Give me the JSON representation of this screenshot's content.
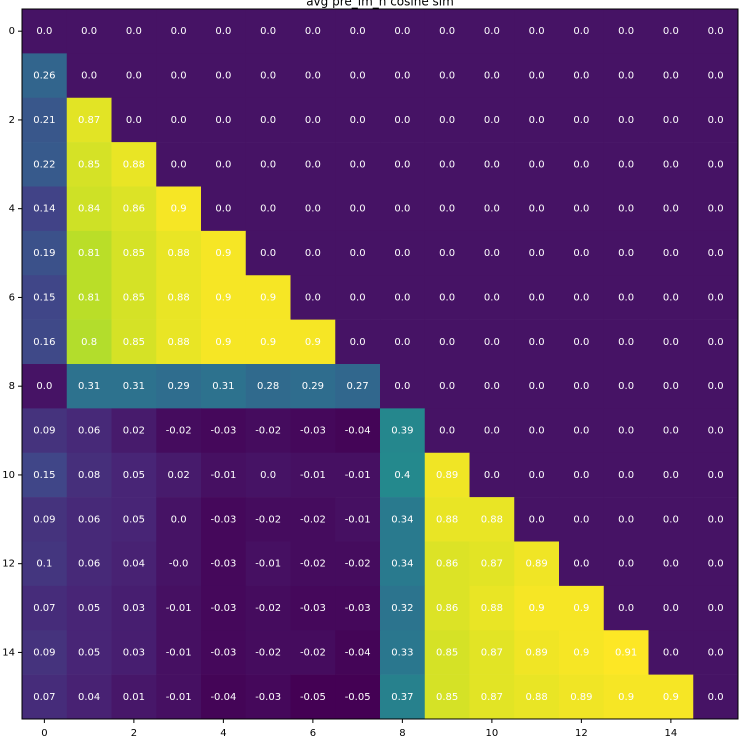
{
  "chart_data": {
    "type": "heatmap",
    "title": "avg pre_lm_h cosine sim",
    "colormap": "viridis",
    "clim": [
      -0.05,
      0.91
    ],
    "xlim": [
      -0.5,
      15.5
    ],
    "ylim": [
      15.5,
      -0.5
    ],
    "xticks": [
      0,
      2,
      4,
      6,
      8,
      10,
      12,
      14
    ],
    "yticks": [
      0,
      2,
      4,
      6,
      8,
      10,
      12,
      14
    ],
    "values": [
      [
        0,
        0,
        0,
        0,
        0,
        0,
        0,
        0,
        0,
        0,
        0,
        0,
        0,
        0,
        0,
        0
      ],
      [
        0.26,
        0,
        0,
        0,
        0,
        0,
        0,
        0,
        0,
        0,
        0,
        0,
        0,
        0,
        0,
        0
      ],
      [
        0.21,
        0.87,
        0,
        0,
        0,
        0,
        0,
        0,
        0,
        0,
        0,
        0,
        0,
        0,
        0,
        0
      ],
      [
        0.22,
        0.85,
        0.88,
        0,
        0,
        0,
        0,
        0,
        0,
        0,
        0,
        0,
        0,
        0,
        0,
        0
      ],
      [
        0.14,
        0.84,
        0.86,
        0.9,
        0,
        0,
        0,
        0,
        0,
        0,
        0,
        0,
        0,
        0,
        0,
        0
      ],
      [
        0.19,
        0.81,
        0.85,
        0.88,
        0.9,
        0,
        0,
        0,
        0,
        0,
        0,
        0,
        0,
        0,
        0,
        0
      ],
      [
        0.15,
        0.81,
        0.85,
        0.88,
        0.9,
        0.9,
        0,
        0,
        0,
        0,
        0,
        0,
        0,
        0,
        0,
        0
      ],
      [
        0.16,
        0.8,
        0.85,
        0.88,
        0.9,
        0.9,
        0.9,
        0,
        0,
        0,
        0,
        0,
        0,
        0,
        0,
        0
      ],
      [
        0,
        0.31,
        0.31,
        0.29,
        0.31,
        0.28,
        0.29,
        0.27,
        0,
        0,
        0,
        0,
        0,
        0,
        0,
        0
      ],
      [
        0.09,
        0.06,
        0.02,
        -0.02,
        -0.03,
        -0.02,
        -0.03,
        -0.04,
        0.39,
        0,
        0,
        0,
        0,
        0,
        0,
        0
      ],
      [
        0.15,
        0.08,
        0.05,
        0.02,
        -0.01,
        0,
        -0.01,
        -0.01,
        0.4,
        0.89,
        0,
        0,
        0,
        0,
        0,
        0
      ],
      [
        0.09,
        0.06,
        0.05,
        0,
        -0.03,
        -0.02,
        -0.02,
        -0.01,
        0.34,
        0.88,
        0.88,
        0,
        0,
        0,
        0,
        0
      ],
      [
        0.1,
        0.06,
        0.04,
        0,
        -0.03,
        -0.01,
        -0.02,
        -0.02,
        0.34,
        0.86,
        0.87,
        0.89,
        0,
        0,
        0,
        0
      ],
      [
        0.07,
        0.05,
        0.03,
        -0.01,
        -0.03,
        -0.02,
        -0.03,
        -0.03,
        0.32,
        0.86,
        0.88,
        0.9,
        0.9,
        0,
        0,
        0
      ],
      [
        0.09,
        0.05,
        0.03,
        -0.01,
        -0.03,
        -0.02,
        -0.02,
        -0.04,
        0.33,
        0.85,
        0.87,
        0.89,
        0.9,
        0.91,
        0,
        0
      ],
      [
        0.07,
        0.04,
        0.01,
        -0.01,
        -0.04,
        -0.03,
        -0.05,
        -0.05,
        0.37,
        0.85,
        0.87,
        0.88,
        0.89,
        0.9,
        0.9,
        0
      ]
    ],
    "value_labels": [
      [
        "0.0",
        "0.0",
        "0.0",
        "0.0",
        "0.0",
        "0.0",
        "0.0",
        "0.0",
        "0.0",
        "0.0",
        "0.0",
        "0.0",
        "0.0",
        "0.0",
        "0.0",
        "0.0"
      ],
      [
        "0.26",
        "0.0",
        "0.0",
        "0.0",
        "0.0",
        "0.0",
        "0.0",
        "0.0",
        "0.0",
        "0.0",
        "0.0",
        "0.0",
        "0.0",
        "0.0",
        "0.0",
        "0.0"
      ],
      [
        "0.21",
        "0.87",
        "0.0",
        "0.0",
        "0.0",
        "0.0",
        "0.0",
        "0.0",
        "0.0",
        "0.0",
        "0.0",
        "0.0",
        "0.0",
        "0.0",
        "0.0",
        "0.0"
      ],
      [
        "0.22",
        "0.85",
        "0.88",
        "0.0",
        "0.0",
        "0.0",
        "0.0",
        "0.0",
        "0.0",
        "0.0",
        "0.0",
        "0.0",
        "0.0",
        "0.0",
        "0.0",
        "0.0"
      ],
      [
        "0.14",
        "0.84",
        "0.86",
        "0.9",
        "0.0",
        "0.0",
        "0.0",
        "0.0",
        "0.0",
        "0.0",
        "0.0",
        "0.0",
        "0.0",
        "0.0",
        "0.0",
        "0.0"
      ],
      [
        "0.19",
        "0.81",
        "0.85",
        "0.88",
        "0.9",
        "0.0",
        "0.0",
        "0.0",
        "0.0",
        "0.0",
        "0.0",
        "0.0",
        "0.0",
        "0.0",
        "0.0",
        "0.0"
      ],
      [
        "0.15",
        "0.81",
        "0.85",
        "0.88",
        "0.9",
        "0.9",
        "0.0",
        "0.0",
        "0.0",
        "0.0",
        "0.0",
        "0.0",
        "0.0",
        "0.0",
        "0.0",
        "0.0"
      ],
      [
        "0.16",
        "0.8",
        "0.85",
        "0.88",
        "0.9",
        "0.9",
        "0.9",
        "0.0",
        "0.0",
        "0.0",
        "0.0",
        "0.0",
        "0.0",
        "0.0",
        "0.0",
        "0.0"
      ],
      [
        "0.0",
        "0.31",
        "0.31",
        "0.29",
        "0.31",
        "0.28",
        "0.29",
        "0.27",
        "0.0",
        "0.0",
        "0.0",
        "0.0",
        "0.0",
        "0.0",
        "0.0",
        "0.0"
      ],
      [
        "0.09",
        "0.06",
        "0.02",
        "-0.02",
        "-0.03",
        "-0.02",
        "-0.03",
        "-0.04",
        "0.39",
        "0.0",
        "0.0",
        "0.0",
        "0.0",
        "0.0",
        "0.0",
        "0.0"
      ],
      [
        "0.15",
        "0.08",
        "0.05",
        "0.02",
        "-0.01",
        "0.0",
        "-0.01",
        "-0.01",
        "0.4",
        "0.89",
        "0.0",
        "0.0",
        "0.0",
        "0.0",
        "0.0",
        "0.0"
      ],
      [
        "0.09",
        "0.06",
        "0.05",
        "0.0",
        "-0.03",
        "-0.02",
        "-0.02",
        "-0.01",
        "0.34",
        "0.88",
        "0.88",
        "0.0",
        "0.0",
        "0.0",
        "0.0",
        "0.0"
      ],
      [
        "0.1",
        "0.06",
        "0.04",
        "-0.0",
        "-0.03",
        "-0.01",
        "-0.02",
        "-0.02",
        "0.34",
        "0.86",
        "0.87",
        "0.89",
        "0.0",
        "0.0",
        "0.0",
        "0.0"
      ],
      [
        "0.07",
        "0.05",
        "0.03",
        "-0.01",
        "-0.03",
        "-0.02",
        "-0.03",
        "-0.03",
        "0.32",
        "0.86",
        "0.88",
        "0.9",
        "0.9",
        "0.0",
        "0.0",
        "0.0"
      ],
      [
        "0.09",
        "0.05",
        "0.03",
        "-0.01",
        "-0.03",
        "-0.02",
        "-0.02",
        "-0.04",
        "0.33",
        "0.85",
        "0.87",
        "0.89",
        "0.9",
        "0.91",
        "0.0",
        "0.0"
      ],
      [
        "0.07",
        "0.04",
        "0.01",
        "-0.01",
        "-0.04",
        "-0.03",
        "-0.05",
        "-0.05",
        "0.37",
        "0.85",
        "0.87",
        "0.88",
        "0.89",
        "0.9",
        "0.9",
        "0.0"
      ]
    ]
  }
}
